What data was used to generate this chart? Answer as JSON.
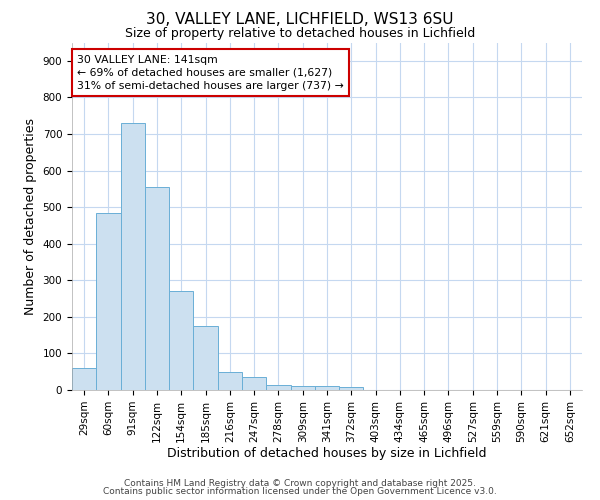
{
  "title1": "30, VALLEY LANE, LICHFIELD, WS13 6SU",
  "title2": "Size of property relative to detached houses in Lichfield",
  "xlabel": "Distribution of detached houses by size in Lichfield",
  "ylabel": "Number of detached properties",
  "bin_labels": [
    "29sqm",
    "60sqm",
    "91sqm",
    "122sqm",
    "154sqm",
    "185sqm",
    "216sqm",
    "247sqm",
    "278sqm",
    "309sqm",
    "341sqm",
    "372sqm",
    "403sqm",
    "434sqm",
    "465sqm",
    "496sqm",
    "527sqm",
    "559sqm",
    "590sqm",
    "621sqm",
    "652sqm"
  ],
  "bar_values": [
    60,
    485,
    730,
    555,
    270,
    175,
    50,
    35,
    15,
    12,
    12,
    7,
    0,
    0,
    0,
    0,
    0,
    0,
    0,
    0,
    0
  ],
  "bar_color": "#cce0f0",
  "bar_edge_color": "#6aafd6",
  "annotation_text": "30 VALLEY LANE: 141sqm\n← 69% of detached houses are smaller (1,627)\n31% of semi-detached houses are larger (737) →",
  "annotation_box_facecolor": "#ffffff",
  "annotation_box_edgecolor": "#cc0000",
  "annotation_text_color": "#000000",
  "ylim": [
    0,
    950
  ],
  "yticks": [
    0,
    100,
    200,
    300,
    400,
    500,
    600,
    700,
    800,
    900
  ],
  "background_color": "#ffffff",
  "grid_color": "#c5d8f0",
  "footer1": "Contains HM Land Registry data © Crown copyright and database right 2025.",
  "footer2": "Contains public sector information licensed under the Open Government Licence v3.0.",
  "title1_fontsize": 11,
  "title2_fontsize": 9,
  "tick_fontsize": 7.5,
  "axis_label_fontsize": 9,
  "footer_fontsize": 6.5
}
